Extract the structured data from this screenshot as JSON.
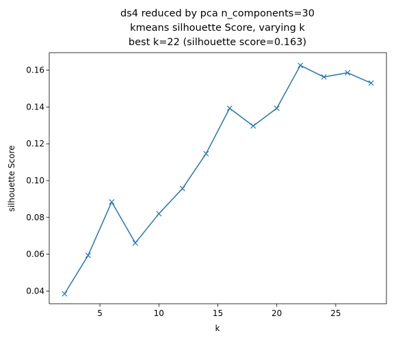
{
  "chart_data": {
    "type": "line",
    "title_lines": [
      "ds4 reduced by pca n_components=30",
      "kmeans silhouette Score, varying k",
      "best k=22 (silhouette score=0.163)"
    ],
    "xlabel": "k",
    "ylabel": "silhouette Score",
    "xlim": [
      0.7,
      29.3
    ],
    "ylim": [
      0.0331,
      0.1695
    ],
    "xticks": [
      5,
      10,
      15,
      20,
      25
    ],
    "yticks": [
      0.04,
      0.06,
      0.08,
      0.1,
      0.12,
      0.14,
      0.16
    ],
    "ytick_labels": [
      "0.04",
      "0.06",
      "0.08",
      "0.10",
      "0.12",
      "0.14",
      "0.16"
    ],
    "grid": false,
    "marker": "x",
    "series": [
      {
        "x": [
          2,
          4,
          6,
          8,
          10,
          12,
          14,
          16,
          18,
          20,
          22,
          24,
          26,
          28
        ],
        "y": [
          0.0385,
          0.0594,
          0.0884,
          0.0661,
          0.082,
          0.0957,
          0.1146,
          0.1393,
          0.1297,
          0.1393,
          0.1626,
          0.1563,
          0.1586,
          0.153
        ],
        "color": "#1f77b4"
      }
    ]
  }
}
